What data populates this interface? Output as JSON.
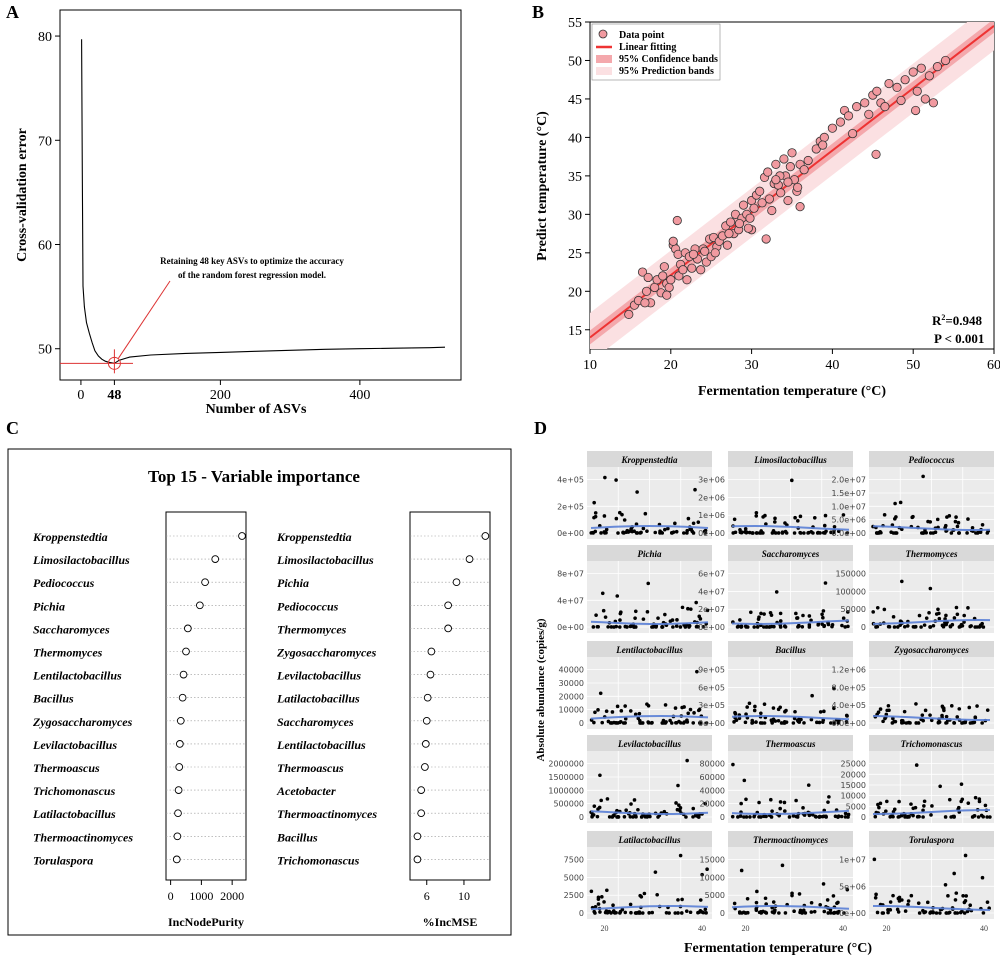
{
  "panels": {
    "a": "A",
    "b": "B",
    "c": "C",
    "d": "D"
  },
  "chart_data": [
    {
      "id": "A",
      "type": "line",
      "xlabel": "Number of ASVs",
      "ylabel": "Cross-validation error",
      "xlim": [
        -30,
        545
      ],
      "ylim": [
        47,
        82.5
      ],
      "xticks": [
        0,
        48,
        200,
        400
      ],
      "xtick_labels": [
        "0",
        "48",
        "200",
        "400"
      ],
      "yticks": [
        50,
        60,
        70,
        80
      ],
      "annotation": [
        "Retaining 48 key ASVs to optimize the accuracy",
        "of the random forest regression model."
      ],
      "marker_x": 48,
      "marker_y": 48.6,
      "series": [
        {
          "name": "cv_error",
          "x": [
            1,
            2,
            3,
            5,
            8,
            12,
            16,
            20,
            25,
            30,
            35,
            40,
            48,
            55,
            70,
            100,
            150,
            200,
            250,
            300,
            350,
            400,
            450,
            500,
            522
          ],
          "y": [
            79.7,
            67,
            56,
            54,
            52.5,
            51.5,
            50.6,
            49.8,
            49.3,
            49.0,
            48.8,
            48.7,
            48.6,
            48.9,
            49.2,
            49.4,
            49.55,
            49.65,
            49.75,
            49.85,
            49.95,
            50.0,
            50.05,
            50.1,
            50.15
          ]
        }
      ]
    },
    {
      "id": "B",
      "type": "scatter",
      "xlabel": "Fermentation temperature (°C)",
      "ylabel": "Predict temperature (°C)",
      "xlim": [
        10,
        60
      ],
      "ylim": [
        12.5,
        55
      ],
      "xticks": [
        10,
        20,
        30,
        40,
        50,
        60
      ],
      "yticks": [
        15,
        20,
        25,
        30,
        35,
        40,
        45,
        50,
        55
      ],
      "legend": [
        "Data point",
        "Linear fitting",
        "95% Confidence bands",
        "95% Prediction bands"
      ],
      "fit": {
        "slope": 0.81,
        "intercept": 5.9
      },
      "r2_label": "R",
      "r2_sup": "2",
      "r2_value": "=0.948",
      "p_label": "P < 0.001",
      "points": {
        "x": [
          14.8,
          15.5,
          16.0,
          16.5,
          17.0,
          17.2,
          17.5,
          18.0,
          18.3,
          18.8,
          19.0,
          19.2,
          19.5,
          19.8,
          20.0,
          20.3,
          20.6,
          20.9,
          21.0,
          21.2,
          21.5,
          21.8,
          22.0,
          22.3,
          22.6,
          23.0,
          23.3,
          23.7,
          24.0,
          24.4,
          24.8,
          25.0,
          25.3,
          25.7,
          26.0,
          26.4,
          26.8,
          27.0,
          27.4,
          27.8,
          28.0,
          28.4,
          28.8,
          29.0,
          29.4,
          29.8,
          30.0,
          30.3,
          30.6,
          31.0,
          31.3,
          31.6,
          32.0,
          32.2,
          32.5,
          32.8,
          33.0,
          33.3,
          33.6,
          34.0,
          34.2,
          34.5,
          34.8,
          35.0,
          35.3,
          35.6,
          36.0,
          36.5,
          37.0,
          38.0,
          38.5,
          39.0,
          40.0,
          41.0,
          41.5,
          42.0,
          43.0,
          44.0,
          44.5,
          45.0,
          45.5,
          46.0,
          47.0,
          48.0,
          49.0,
          50.0,
          50.5,
          51.0,
          52.0,
          53.0,
          54.0,
          20.8,
          20.3,
          33.5,
          45.4,
          28.5,
          31.8,
          35.7,
          16.8,
          19.5,
          25.5,
          30.0,
          33.0,
          36.0,
          50.3,
          52.5,
          48.5,
          42.5,
          27.2,
          22.8,
          34.5,
          29.6,
          24.2,
          38.8,
          46.5,
          51.5
        ],
        "y": [
          17.0,
          18.2,
          18.8,
          22.5,
          20.0,
          21.8,
          18.5,
          20.5,
          21.5,
          19.8,
          22.0,
          23.2,
          21.0,
          20.5,
          21.5,
          26.0,
          25.5,
          24.8,
          22.0,
          23.5,
          22.8,
          25.0,
          21.5,
          24.5,
          23.0,
          25.5,
          24.2,
          22.8,
          25.5,
          23.8,
          26.8,
          24.5,
          27.0,
          25.8,
          26.5,
          27.2,
          28.5,
          26.0,
          29.0,
          27.5,
          30.0,
          28.0,
          29.5,
          31.2,
          30.0,
          29.5,
          31.8,
          30.8,
          32.5,
          33.0,
          31.5,
          34.8,
          35.5,
          32.0,
          30.5,
          34.0,
          36.5,
          33.8,
          32.8,
          37.2,
          35.0,
          31.8,
          36.2,
          38.0,
          34.5,
          33.0,
          36.5,
          35.8,
          37.0,
          38.5,
          39.5,
          40.0,
          41.2,
          42.0,
          43.5,
          42.8,
          44.0,
          44.5,
          43.0,
          45.5,
          46.0,
          44.5,
          47.0,
          46.5,
          47.5,
          48.5,
          46.0,
          49.0,
          48.0,
          49.2,
          50.0,
          29.2,
          26.5,
          35.0,
          37.8,
          28.8,
          26.8,
          33.5,
          18.5,
          19.5,
          25.0,
          28.0,
          34.5,
          31.0,
          43.5,
          44.5,
          44.8,
          40.5,
          27.5,
          24.8,
          34.2,
          28.2,
          25.2,
          39.0,
          44.0,
          45.0
        ]
      }
    },
    {
      "id": "C",
      "type": "scatter",
      "title": "Top 15 - Variable importance",
      "subplots": [
        {
          "xlabel": "IncNodePurity",
          "xlim": [
            -150,
            2450
          ],
          "xticks": [
            0,
            1000,
            2000
          ],
          "labels": [
            "Kroppenstedtia",
            "Limosilactobacillus",
            "Pediococcus",
            "Pichia",
            "Saccharomyces",
            "Thermomyces",
            "Lentilactobacillus",
            "Bacillus",
            "Zygosaccharomyces",
            "Levilactobacillus",
            "Thermoascus",
            "Trichomonascus",
            "Latilactobacillus",
            "Thermoactinomyces",
            "Torulaspora"
          ],
          "values": [
            2320,
            1450,
            1120,
            950,
            560,
            500,
            420,
            390,
            330,
            300,
            280,
            260,
            240,
            220,
            200
          ]
        },
        {
          "xlabel": "%IncMSE",
          "xlim": [
            4.2,
            12.8
          ],
          "xticks": [
            6,
            10
          ],
          "labels": [
            "Kroppenstedtia",
            "Limosilactobacillus",
            "Pichia",
            "Pediococcus",
            "Thermomyces",
            "Zygosaccharomyces",
            "Levilactobacillus",
            "Latilactobacillus",
            "Saccharomyces",
            "Lentilactobacillus",
            "Thermoascus",
            "Acetobacter",
            "Thermoactinomyces",
            "Bacillus",
            "Trichomonascus"
          ],
          "values": [
            12.3,
            10.6,
            9.2,
            8.3,
            8.3,
            6.5,
            6.4,
            6.1,
            6.0,
            5.9,
            5.8,
            5.4,
            5.4,
            5.0,
            5.0
          ]
        }
      ]
    },
    {
      "id": "D",
      "type": "scatter",
      "xlabel": "Fermentation temperature (°C)",
      "ylabel": "Absolute abundance (copies/g)",
      "bottom_ticks": [
        "20",
        "40"
      ],
      "facets": [
        {
          "name": "Kroppenstedtia",
          "yticks": [
            "0e+00",
            "2e+05",
            "4e+05"
          ],
          "ymax": 550000
        },
        {
          "name": "Limosilactobacillus",
          "yticks": [
            "0e+00",
            "1e+06",
            "2e+06",
            "3e+06"
          ],
          "ymax": 3300000
        },
        {
          "name": "Pediococcus",
          "yticks": [
            "0.0e+00",
            "5.0e+06",
            "1.0e+07",
            "1.5e+07",
            "2.0e+07"
          ],
          "ymax": 21000000
        },
        {
          "name": "Pichia",
          "yticks": [
            "0e+00",
            "4e+07",
            "8e+07"
          ],
          "ymax": 100000000
        },
        {
          "name": "Saccharomyces",
          "yticks": [
            "0e+00",
            "2e+07",
            "4e+07",
            "6e+07"
          ],
          "ymax": 65000000
        },
        {
          "name": "Thermomyces",
          "yticks": [
            "0",
            "50000",
            "100000",
            "150000"
          ],
          "ymax": 170000
        },
        {
          "name": "Lentilactobacillus",
          "yticks": [
            "0",
            "10000",
            "20000",
            "30000",
            "40000"
          ],
          "ymax": 42000
        },
        {
          "name": "Bacillus",
          "yticks": [
            "0e+00",
            "3e+05",
            "6e+05",
            "9e+05"
          ],
          "ymax": 1100000
        },
        {
          "name": "Zygosaccharomyces",
          "yticks": [
            "0.0e+00",
            "4.0e+05",
            "8.0e+05",
            "1.2e+06"
          ],
          "ymax": 1300000
        },
        {
          "name": "Levilactobacillus",
          "yticks": [
            "0",
            "500000",
            "1000000",
            "1500000",
            "2000000"
          ],
          "ymax": 2300000
        },
        {
          "name": "Thermoascus",
          "yticks": [
            "0",
            "20000",
            "40000",
            "60000",
            "80000"
          ],
          "ymax": 90000
        },
        {
          "name": "Trichomonascus",
          "yticks": [
            "0",
            "5000",
            "10000",
            "15000",
            "20000",
            "25000"
          ],
          "ymax": 27000
        },
        {
          "name": "Latilactobacillus",
          "yticks": [
            "0",
            "2500",
            "5000",
            "7500"
          ],
          "ymax": 9000
        },
        {
          "name": "Thermoactinomyces",
          "yticks": [
            "0",
            "5000",
            "10000",
            "15000"
          ],
          "ymax": 17500
        },
        {
          "name": "Torulaspora",
          "yticks": [
            "0e+00",
            "5e+06",
            "1e+07"
          ],
          "ymax": 15000000
        }
      ]
    }
  ]
}
